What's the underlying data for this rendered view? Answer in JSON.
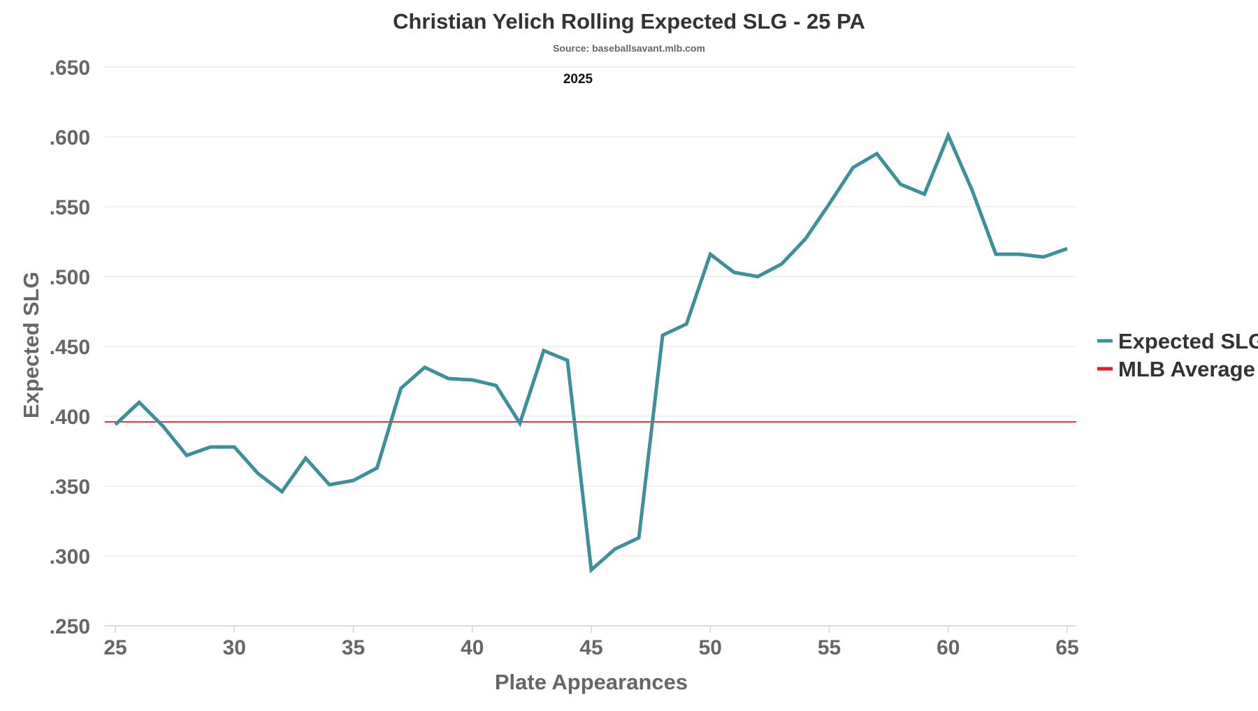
{
  "chart_data": {
    "type": "line",
    "title": "Christian Yelich Rolling Expected SLG - 25 PA",
    "subtitle": "Source: baseballsavant.mlb.com",
    "annotation": "2025",
    "xlabel": "Plate Appearances",
    "ylabel": "Expected SLG",
    "xlim": [
      25,
      65
    ],
    "ylim": [
      0.25,
      0.65
    ],
    "x_ticks": [
      25,
      30,
      35,
      40,
      45,
      50,
      55,
      60,
      65
    ],
    "x_tick_labels": [
      "25",
      "30",
      "35",
      "40",
      "45",
      "50",
      "55",
      "60",
      "65"
    ],
    "y_ticks": [
      0.25,
      0.3,
      0.35,
      0.4,
      0.45,
      0.5,
      0.55,
      0.6,
      0.65
    ],
    "y_tick_labels": [
      ".250",
      ".300",
      ".350",
      ".400",
      ".450",
      ".500",
      ".550",
      ".600",
      ".650"
    ],
    "grid": true,
    "legend_position": "right",
    "series": [
      {
        "name": "Expected SLG",
        "color": "#3d8f99",
        "x": [
          25,
          26,
          27,
          28,
          29,
          30,
          31,
          32,
          33,
          34,
          35,
          36,
          37,
          38,
          39,
          40,
          41,
          42,
          43,
          44,
          45,
          46,
          47,
          48,
          49,
          50,
          51,
          52,
          53,
          54,
          55,
          56,
          57,
          58,
          59,
          60,
          61,
          62,
          63,
          64,
          65
        ],
        "values": [
          0.394,
          0.41,
          0.393,
          0.372,
          0.378,
          0.378,
          0.359,
          0.346,
          0.37,
          0.351,
          0.354,
          0.363,
          0.42,
          0.435,
          0.427,
          0.426,
          0.422,
          0.395,
          0.447,
          0.44,
          0.29,
          0.305,
          0.313,
          0.458,
          0.466,
          0.516,
          0.503,
          0.5,
          0.509,
          0.527,
          0.552,
          0.578,
          0.588,
          0.566,
          0.559,
          0.601,
          0.562,
          0.516,
          0.516,
          0.514,
          0.52
        ]
      }
    ],
    "reference_lines": [
      {
        "name": "MLB Average",
        "color": "#e8191e",
        "value": 0.396
      }
    ]
  }
}
